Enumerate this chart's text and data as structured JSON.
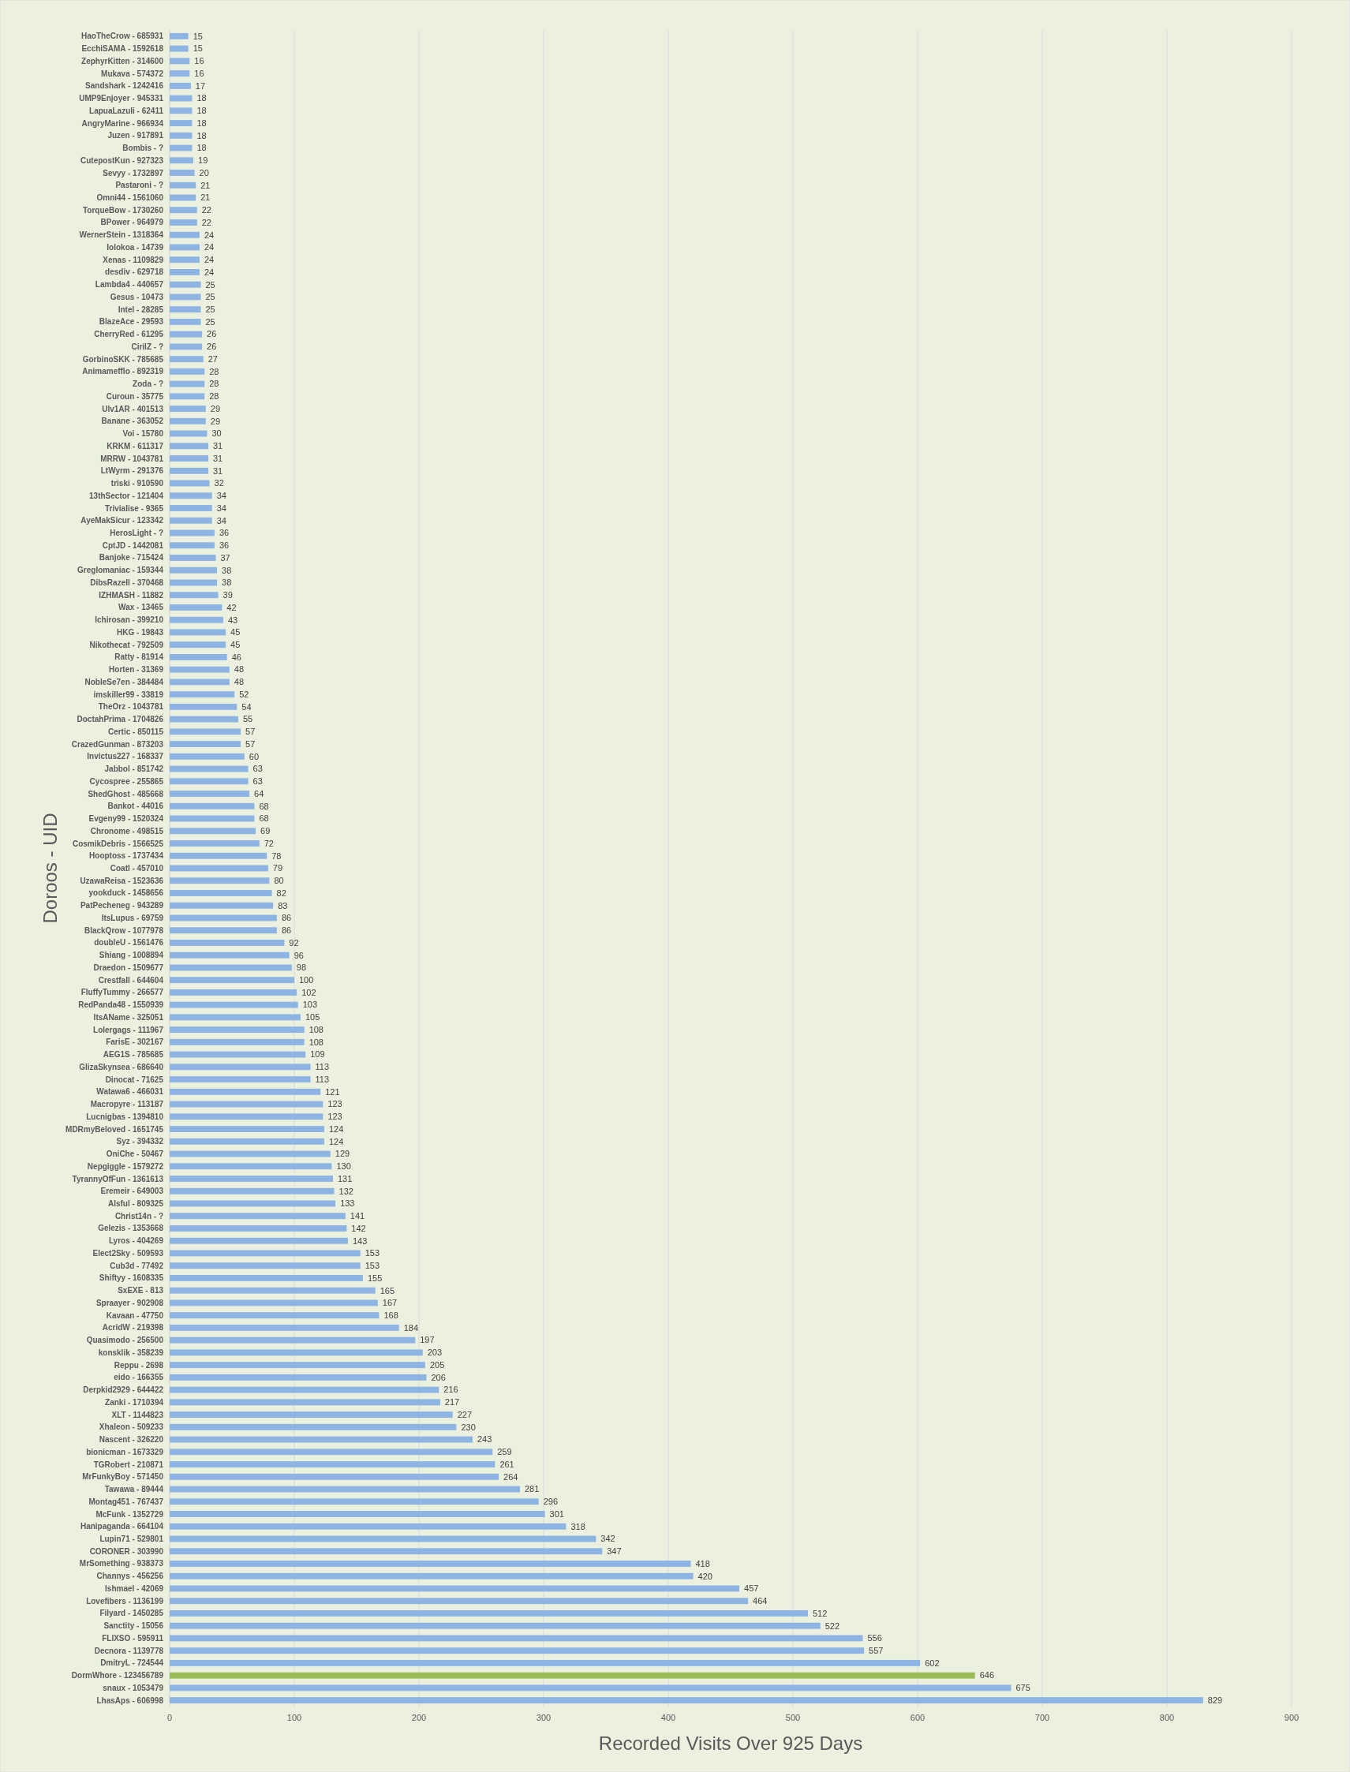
{
  "chart_data": {
    "type": "bar",
    "orientation": "horizontal",
    "xlabel": "Recorded Visits Over 925 Days",
    "ylabel": "Doroos - UID",
    "categories": [
      "HaoTheCrow - 685931",
      "EcchiSAMA - 1592618",
      "ZephyrKitten - 314600",
      "Mukava - 574372",
      "Sandshark - 1242416",
      "UMP9Enjoyer - 945331",
      "LapuaLazuli - 62411",
      "AngryMarine - 966934",
      "Juzen - 917891",
      "Bombis - ?",
      "CutepostKun - 927323",
      "Sevyy - 1732897",
      "Pastaroni - ?",
      "Omni44 - 1561060",
      "TorqueBow - 1730260",
      "BPower - 964979",
      "WernerStein - 1318364",
      "Iolokoa - 14739",
      "Xenas - 1109829",
      "desdiv - 629718",
      "Lambda4 - 440657",
      "Gesus - 10473",
      "Intel - 28285",
      "BlazeAce - 29593",
      "CherryRed - 61295",
      "CirilZ - ?",
      "GorbinoSKK - 785685",
      "Animamefflo - 892319",
      "Zoda - ?",
      "Curoun - 35775",
      "Ulv1AR - 401513",
      "Banane - 363052",
      "Voi - 15780",
      "KRKM - 611317",
      "MRRW - 1043781",
      "LtWyrm - 291376",
      "triski - 910590",
      "13thSector - 121404",
      "Trivialise - 9365",
      "AyeMakSicur - 123342",
      "HerosLight - ?",
      "CptJD - 1442081",
      "Banjoke - 715424",
      "Greglomaniac - 159344",
      "DibsRazell - 370468",
      "IZHMASH - 11882",
      "Wax - 13465",
      "Ichirosan - 399210",
      "HKG - 19843",
      "Nikothecat - 792509",
      "Ratty - 81914",
      "Horten - 31369",
      "NobleSe7en - 384484",
      "imskiller99 - 33819",
      "TheOrz - 1043781",
      "DoctahPrima - 1704826",
      "Certic - 850115",
      "CrazedGunman - 873203",
      "Invictus227 - 168337",
      "Jabbol - 851742",
      "Cycospree - 255865",
      "ShedGhost - 485668",
      "Bankot - 44016",
      "Evgeny99 - 1520324",
      "Chronome - 498515",
      "CosmikDebris - 1566525",
      "Hooptoss - 1737434",
      "Coatl - 457010",
      "UzawaReisa - 1523636",
      "yookduck - 1458656",
      "PatPecheneg - 943289",
      "ItsLupus - 69759",
      "BlackQrow - 1077978",
      "doubleU - 1561476",
      "Shiang - 1008894",
      "Draedon - 1509677",
      "Crestfall - 644604",
      "FluffyTummy - 266577",
      "RedPanda48 - 1550939",
      "ItsAName - 325051",
      "Lolergags - 111967",
      "FarisE - 302167",
      "AEG1S - 785685",
      "GlizaSkynsea - 686640",
      "Dinocat - 71625",
      "Watawa6 - 466031",
      "Macropyre - 113187",
      "Lucnigbas - 1394810",
      "MDRmyBeloved - 1651745",
      "Syz - 394332",
      "OniChe - 50467",
      "Nepgiggle - 1579272",
      "TyrannyOfFun - 1361613",
      "Eremeir - 649003",
      "Alsful - 809325",
      "Christ14n - ?",
      "Gelezis - 1353668",
      "Lyros - 404269",
      "Elect2Sky - 509593",
      "Cub3d - 77492",
      "Shiftyy - 1608335",
      "SxEXE - 813",
      "Spraayer - 902908",
      "Kavaan - 47750",
      "AcridW - 219398",
      "Quasimodo - 256500",
      "konsklik - 358239",
      "Reppu - 2698",
      "eido - 166355",
      "Derpkid2929 - 644422",
      "Zanki - 1710394",
      "XLT - 1144823",
      "Xhaleon - 509233",
      "Nascent - 326220",
      "bionicman - 1673329",
      "TGRobert - 210871",
      "MrFunkyBoy - 571450",
      "Tawawa - 89444",
      "Montag451 - 767437",
      "McFunk - 1352729",
      "Hanipaganda - 664104",
      "Lupin71 - 529801",
      "CORONER - 303990",
      "MrSomething - 938373",
      "Channys - 456256",
      "Ishmael - 42069",
      "Lovefibers - 1136199",
      "Filyard - 1450285",
      "Sanctity - 15056",
      "FLIXSO - 595911",
      "Decnora - 1139778",
      "DmitryL - 724544",
      "DormWhore - 123456789",
      "snaux - 1053479",
      "LhasAps - 606998"
    ],
    "values": [
      15,
      15,
      16,
      16,
      17,
      18,
      18,
      18,
      18,
      18,
      19,
      20,
      21,
      21,
      22,
      22,
      24,
      24,
      24,
      24,
      25,
      25,
      25,
      25,
      26,
      26,
      27,
      28,
      28,
      28,
      29,
      29,
      30,
      31,
      31,
      31,
      32,
      34,
      34,
      34,
      36,
      36,
      37,
      38,
      38,
      39,
      42,
      43,
      45,
      45,
      46,
      48,
      48,
      52,
      54,
      55,
      57,
      57,
      60,
      63,
      63,
      64,
      68,
      68,
      69,
      72,
      78,
      79,
      80,
      82,
      83,
      86,
      86,
      92,
      96,
      98,
      100,
      102,
      103,
      105,
      108,
      108,
      109,
      113,
      113,
      121,
      123,
      123,
      124,
      124,
      129,
      130,
      131,
      132,
      133,
      141,
      142,
      143,
      153,
      153,
      155,
      165,
      167,
      168,
      184,
      197,
      203,
      205,
      206,
      216,
      217,
      227,
      230,
      243,
      259,
      261,
      264,
      281,
      296,
      301,
      318,
      342,
      347,
      418,
      420,
      457,
      464,
      512,
      522,
      556,
      557,
      602,
      646,
      675,
      829
    ],
    "colors": [
      "#8db4e2",
      "#8db4e2",
      "#8db4e2",
      "#8db4e2",
      "#8db4e2",
      "#8db4e2",
      "#8db4e2",
      "#8db4e2",
      "#8db4e2",
      "#8db4e2",
      "#8db4e2",
      "#8db4e2",
      "#8db4e2",
      "#8db4e2",
      "#8db4e2",
      "#8db4e2",
      "#8db4e2",
      "#8db4e2",
      "#8db4e2",
      "#8db4e2",
      "#8db4e2",
      "#8db4e2",
      "#8db4e2",
      "#8db4e2",
      "#8db4e2",
      "#8db4e2",
      "#8db4e2",
      "#8db4e2",
      "#8db4e2",
      "#8db4e2",
      "#8db4e2",
      "#8db4e2",
      "#8db4e2",
      "#8db4e2",
      "#8db4e2",
      "#8db4e2",
      "#8db4e2",
      "#8db4e2",
      "#8db4e2",
      "#8db4e2",
      "#8db4e2",
      "#8db4e2",
      "#8db4e2",
      "#8db4e2",
      "#8db4e2",
      "#8db4e2",
      "#8db4e2",
      "#8db4e2",
      "#8db4e2",
      "#8db4e2",
      "#8db4e2",
      "#8db4e2",
      "#8db4e2",
      "#8db4e2",
      "#8db4e2",
      "#8db4e2",
      "#8db4e2",
      "#8db4e2",
      "#8db4e2",
      "#8db4e2",
      "#8db4e2",
      "#8db4e2",
      "#8db4e2",
      "#8db4e2",
      "#8db4e2",
      "#8db4e2",
      "#8db4e2",
      "#8db4e2",
      "#8db4e2",
      "#8db4e2",
      "#8db4e2",
      "#8db4e2",
      "#8db4e2",
      "#8db4e2",
      "#8db4e2",
      "#8db4e2",
      "#8db4e2",
      "#8db4e2",
      "#8db4e2",
      "#8db4e2",
      "#8db4e2",
      "#8db4e2",
      "#8db4e2",
      "#8db4e2",
      "#8db4e2",
      "#8db4e2",
      "#8db4e2",
      "#8db4e2",
      "#8db4e2",
      "#8db4e2",
      "#8db4e2",
      "#8db4e2",
      "#8db4e2",
      "#8db4e2",
      "#8db4e2",
      "#8db4e2",
      "#8db4e2",
      "#8db4e2",
      "#8db4e2",
      "#8db4e2",
      "#8db4e2",
      "#8db4e2",
      "#8db4e2",
      "#8db4e2",
      "#8db4e2",
      "#8db4e2",
      "#8db4e2",
      "#8db4e2",
      "#8db4e2",
      "#8db4e2",
      "#8db4e2",
      "#8db4e2",
      "#8db4e2",
      "#8db4e2",
      "#8db4e2",
      "#8db4e2",
      "#8db4e2",
      "#8db4e2",
      "#8db4e2",
      "#8db4e2",
      "#8db4e2",
      "#8db4e2",
      "#8db4e2",
      "#8db4e2",
      "#8db4e2",
      "#8db4e2",
      "#8db4e2",
      "#8db4e2",
      "#8db4e2",
      "#8db4e2",
      "#8db4e2",
      "#8db4e2",
      "#9bbb59",
      "#8db4e2",
      "#8db4e2"
    ],
    "xlim": [
      0,
      900
    ],
    "xticks": [
      0,
      100,
      200,
      300,
      400,
      500,
      600,
      700,
      800,
      900
    ],
    "grid": "x",
    "data_labels": true
  }
}
